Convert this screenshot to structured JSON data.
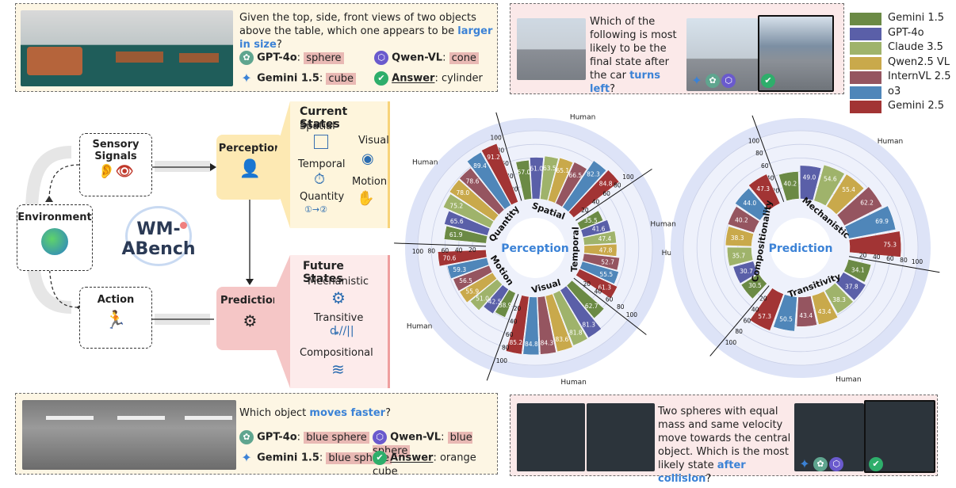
{
  "colors": {
    "gemini15": "#6b8a45",
    "gpt4o": "#5a5fa8",
    "claude35": "#9fb36b",
    "qwen25vl": "#c9a94b",
    "internvl25": "#955560",
    "o3": "#4f86b9",
    "gemini25": "#a23434",
    "human_ring": "#dde3f7",
    "perception_yellow": "#fde9b3",
    "prediction_pink": "#f5c6c6",
    "accent_blue": "#3b82d6"
  },
  "legend": [
    {
      "name": "Gemini 1.5",
      "color": "#6b8a45"
    },
    {
      "name": "GPT-4o",
      "color": "#5a5fa8"
    },
    {
      "name": "Claude 3.5",
      "color": "#9fb36b"
    },
    {
      "name": "Qwen2.5 VL",
      "color": "#c9a94b"
    },
    {
      "name": "InternVL 2.5",
      "color": "#955560"
    },
    {
      "name": "o3",
      "color": "#4f86b9"
    },
    {
      "name": "Gemini 2.5",
      "color": "#a23434"
    }
  ],
  "top_left_q": {
    "text_pre": "Given the top, side, front views of two objects above the table, which one appears to be ",
    "text_hl": "larger in size",
    "text_post": "?",
    "gpt_label": "GPT-4o",
    "gpt_answer": "sphere",
    "qwen_label": "Qwen-VL",
    "qwen_answer": "cone",
    "gemini_label": "Gemini 1.5",
    "gemini_answer": "cube",
    "answer_label": "Answer",
    "answer_value": ": cylinder"
  },
  "top_right_q": {
    "text_pre": "Which of the following is most likely to be the final state after the car ",
    "text_hl": "turns left",
    "text_post": "?"
  },
  "bottom_left_q": {
    "text_pre": "Which object ",
    "text_hl": "moves faster",
    "text_post": "?",
    "gpt_label": "GPT-4o",
    "gpt_answer": "blue sphere",
    "qwen_label": "Qwen-VL",
    "qwen_answer": "blue sphere",
    "gemini_label": "Gemini 1.5",
    "gemini_answer": "blue sphere",
    "answer_label": "Answer",
    "answer_value": ": orange cube"
  },
  "bottom_right_q": {
    "text_pre": "Two spheres with equal mass and same velocity move towards the central object. Which is the most likely state ",
    "text_hl": "after collision",
    "text_post": "?"
  },
  "flow": {
    "sensory": "Sensory Signals",
    "environment": "Environment",
    "action": "Action",
    "perception": "Perception",
    "prediction": "Prediction",
    "logo": "WM-ABench",
    "current_states": "Current States",
    "spatial": "Spatial",
    "visual": "Visual",
    "temporal": "Temporal",
    "quantity": "Quantity",
    "motion": "Motion",
    "future_states": "Future States",
    "mechanistic": "Mechanistic",
    "transitive": "Transitive",
    "compositional": "Compositional"
  },
  "chart_data": [
    {
      "type": "radial-bar",
      "title": "Perception",
      "rlim": [
        0,
        100
      ],
      "ticks": [
        20,
        40,
        60,
        80,
        100
      ],
      "human_label": "Human",
      "series_order": [
        "Gemini 1.5",
        "GPT-4o",
        "Claude 3.5",
        "Qwen2.5 VL",
        "InternVL 2.5",
        "o3",
        "Gemini 2.5"
      ],
      "categories": [
        {
          "name": "Spatial",
          "values": [
            57.0,
            61.0,
            63.5,
            65.1,
            66.5,
            82.3,
            84.8
          ]
        },
        {
          "name": "Temporal",
          "values": [
            35.5,
            41.6,
            47.4,
            47.8,
            52.7,
            55.5,
            61.3
          ]
        },
        {
          "name": "Visual",
          "values": [
            62.7,
            81.3,
            81.8,
            83.6,
            84.3,
            84.8,
            85.2
          ]
        },
        {
          "name": "Motion",
          "values": [
            38.9,
            42.5,
            51.0,
            55.9,
            56.5,
            59.3,
            70.6
          ]
        },
        {
          "name": "Quantity",
          "values": [
            61.9,
            65.6,
            75.2,
            78.0,
            78.6,
            89.4,
            91.2
          ]
        }
      ]
    },
    {
      "type": "radial-bar",
      "title": "Prediction",
      "rlim": [
        0,
        100
      ],
      "ticks": [
        20,
        40,
        60,
        80,
        100
      ],
      "human_label": "Human",
      "series_order": [
        "Gemini 1.5",
        "GPT-4o",
        "Claude 3.5",
        "Qwen2.5 VL",
        "InternVL 2.5",
        "o3",
        "Gemini 2.5"
      ],
      "categories": [
        {
          "name": "Mechanistic",
          "values": [
            40.2,
            49.0,
            54.6,
            55.4,
            62.2,
            69.9,
            75.3
          ]
        },
        {
          "name": "Transitivity",
          "values": [
            34.1,
            37.8,
            38.3,
            43.4,
            43.4,
            50.5,
            57.3
          ]
        },
        {
          "name": "Compositionality",
          "values": [
            30.5,
            30.7,
            35.7,
            38.3,
            40.2,
            44.0,
            47.3
          ]
        }
      ]
    }
  ]
}
